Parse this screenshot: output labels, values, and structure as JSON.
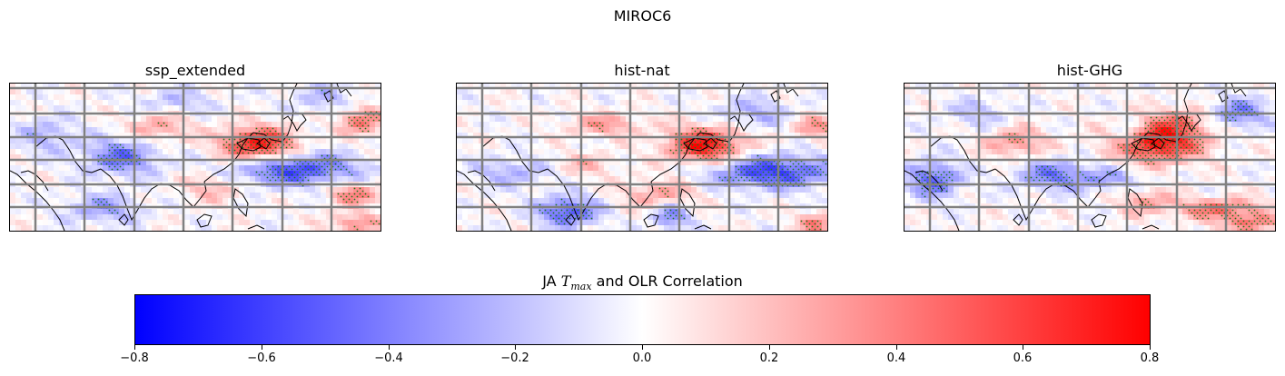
{
  "figure": {
    "title": "MIROC6"
  },
  "panels": [
    {
      "title": "ssp_extended"
    },
    {
      "title": "hist-nat"
    },
    {
      "title": "hist-GHG"
    }
  ],
  "colorbar": {
    "title_prefix": "JA ",
    "title_var": "T",
    "title_sub": "max",
    "title_suffix": " and OLR Correlation",
    "colormap": "bwr",
    "vmin": -0.8,
    "vmax": 0.8,
    "ticks": [
      "−0.8",
      "−0.6",
      "−0.4",
      "−0.2",
      "0.0",
      "0.2",
      "0.4",
      "0.6",
      "0.8"
    ]
  },
  "chart_data": {
    "type": "heatmap",
    "title": "MIROC6",
    "panels": [
      "ssp_extended",
      "hist-nat",
      "hist-GHG"
    ],
    "color_scale": {
      "min": -0.8,
      "max": 0.8,
      "colormap": "bwr"
    },
    "stippling": "significant correlation (green dots)",
    "colors": {
      "negative": "#0000ff",
      "zero": "#ffffff",
      "positive": "#ff0000",
      "stipple": "#1e7a1e",
      "grid": "#808080",
      "coast": "#000000"
    }
  }
}
